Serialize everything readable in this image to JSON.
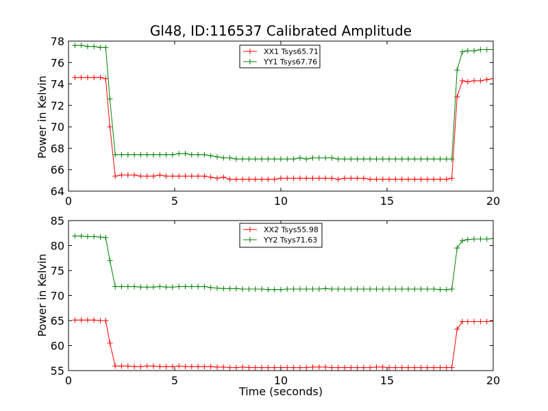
{
  "chart_data": [
    {
      "type": "line",
      "title": "Gl48, ID:116537 Calibrated Amplitude",
      "xlabel": "",
      "ylabel": "Power in Kelvin",
      "xlim": [
        0,
        20
      ],
      "ylim": [
        64,
        78
      ],
      "xticks": [
        0,
        5,
        10,
        15,
        20
      ],
      "yticks": [
        64,
        66,
        68,
        70,
        72,
        74,
        76,
        78
      ],
      "grid": false,
      "legend_position": "top-center",
      "series": [
        {
          "name": "XX1 Tsys65.71",
          "color": "#ff0000",
          "marker": "plus",
          "x": [
            0.3,
            0.6,
            0.9,
            1.2,
            1.5,
            1.75,
            1.95,
            2.2,
            2.5,
            2.8,
            3.1,
            3.4,
            3.7,
            4.0,
            4.3,
            4.6,
            4.9,
            5.2,
            5.5,
            5.8,
            6.1,
            6.4,
            6.7,
            7.0,
            7.3,
            7.6,
            7.9,
            8.2,
            8.5,
            8.8,
            9.1,
            9.4,
            9.7,
            10.0,
            10.3,
            10.6,
            10.9,
            11.2,
            11.5,
            11.8,
            12.1,
            12.4,
            12.7,
            13.0,
            13.3,
            13.6,
            13.9,
            14.2,
            14.5,
            14.8,
            15.1,
            15.4,
            15.7,
            16.0,
            16.3,
            16.6,
            16.9,
            17.2,
            17.5,
            17.8,
            18.05,
            18.3,
            18.55,
            18.8,
            19.1,
            19.4,
            19.7,
            20.0
          ],
          "y": [
            74.6,
            74.6,
            74.6,
            74.6,
            74.6,
            74.5,
            70.0,
            65.4,
            65.5,
            65.5,
            65.5,
            65.4,
            65.4,
            65.4,
            65.5,
            65.4,
            65.4,
            65.4,
            65.4,
            65.4,
            65.4,
            65.4,
            65.3,
            65.2,
            65.3,
            65.1,
            65.1,
            65.1,
            65.1,
            65.1,
            65.1,
            65.1,
            65.1,
            65.2,
            65.2,
            65.2,
            65.2,
            65.2,
            65.2,
            65.2,
            65.2,
            65.2,
            65.1,
            65.2,
            65.2,
            65.2,
            65.2,
            65.1,
            65.1,
            65.1,
            65.1,
            65.1,
            65.1,
            65.1,
            65.1,
            65.1,
            65.1,
            65.1,
            65.1,
            65.1,
            65.2,
            72.8,
            74.3,
            74.2,
            74.3,
            74.3,
            74.4,
            74.5
          ]
        },
        {
          "name": "YY1 Tsys67.76",
          "color": "#008000",
          "marker": "plus",
          "x": [
            0.3,
            0.6,
            0.9,
            1.2,
            1.5,
            1.75,
            1.95,
            2.2,
            2.5,
            2.8,
            3.1,
            3.4,
            3.7,
            4.0,
            4.3,
            4.6,
            4.9,
            5.2,
            5.5,
            5.8,
            6.1,
            6.4,
            6.7,
            7.0,
            7.3,
            7.6,
            7.9,
            8.2,
            8.5,
            8.8,
            9.1,
            9.4,
            9.7,
            10.0,
            10.3,
            10.6,
            10.9,
            11.2,
            11.5,
            11.8,
            12.1,
            12.4,
            12.7,
            13.0,
            13.3,
            13.6,
            13.9,
            14.2,
            14.5,
            14.8,
            15.1,
            15.4,
            15.7,
            16.0,
            16.3,
            16.6,
            16.9,
            17.2,
            17.5,
            17.8,
            18.05,
            18.3,
            18.55,
            18.8,
            19.1,
            19.4,
            19.7,
            20.0
          ],
          "y": [
            77.6,
            77.6,
            77.5,
            77.5,
            77.4,
            77.4,
            72.6,
            67.4,
            67.4,
            67.4,
            67.4,
            67.4,
            67.4,
            67.4,
            67.4,
            67.4,
            67.4,
            67.5,
            67.5,
            67.4,
            67.4,
            67.4,
            67.3,
            67.2,
            67.1,
            67.1,
            67.0,
            67.0,
            67.0,
            67.0,
            67.0,
            67.0,
            67.0,
            67.0,
            67.0,
            67.0,
            67.1,
            67.0,
            67.1,
            67.1,
            67.1,
            67.1,
            67.0,
            67.0,
            67.0,
            67.0,
            67.0,
            67.0,
            67.0,
            67.0,
            67.0,
            67.0,
            67.0,
            67.0,
            67.0,
            67.0,
            67.0,
            67.0,
            67.0,
            67.0,
            67.0,
            75.3,
            77.0,
            77.1,
            77.1,
            77.2,
            77.2,
            77.2
          ]
        }
      ]
    },
    {
      "type": "line",
      "title": "",
      "xlabel": "Time (seconds)",
      "ylabel": "Power in Kelvin",
      "xlim": [
        0,
        20
      ],
      "ylim": [
        55,
        85
      ],
      "xticks": [
        0,
        5,
        10,
        15,
        20
      ],
      "yticks": [
        55,
        60,
        65,
        70,
        75,
        80,
        85
      ],
      "grid": false,
      "legend_position": "top-center",
      "series": [
        {
          "name": "XX2 Tsys55.98",
          "color": "#ff0000",
          "marker": "plus",
          "x": [
            0.3,
            0.6,
            0.9,
            1.2,
            1.5,
            1.75,
            1.95,
            2.2,
            2.5,
            2.8,
            3.1,
            3.4,
            3.7,
            4.0,
            4.3,
            4.6,
            4.9,
            5.2,
            5.5,
            5.8,
            6.1,
            6.4,
            6.7,
            7.0,
            7.3,
            7.6,
            7.9,
            8.2,
            8.5,
            8.8,
            9.1,
            9.4,
            9.7,
            10.0,
            10.3,
            10.6,
            10.9,
            11.2,
            11.5,
            11.8,
            12.1,
            12.4,
            12.7,
            13.0,
            13.3,
            13.6,
            13.9,
            14.2,
            14.5,
            14.8,
            15.1,
            15.4,
            15.7,
            16.0,
            16.3,
            16.6,
            16.9,
            17.2,
            17.5,
            17.8,
            18.05,
            18.3,
            18.55,
            18.8,
            19.1,
            19.4,
            19.7,
            20.0
          ],
          "y": [
            65.1,
            65.1,
            65.1,
            65.1,
            65.0,
            65.0,
            60.5,
            55.9,
            55.9,
            55.9,
            55.8,
            55.8,
            55.9,
            55.9,
            55.8,
            55.8,
            55.8,
            55.9,
            55.8,
            55.8,
            55.8,
            55.8,
            55.8,
            55.7,
            55.7,
            55.6,
            55.6,
            55.7,
            55.6,
            55.6,
            55.6,
            55.6,
            55.6,
            55.6,
            55.6,
            55.6,
            55.6,
            55.6,
            55.7,
            55.7,
            55.7,
            55.6,
            55.6,
            55.6,
            55.6,
            55.6,
            55.6,
            55.6,
            55.7,
            55.7,
            55.6,
            55.6,
            55.6,
            55.6,
            55.6,
            55.6,
            55.6,
            55.6,
            55.6,
            55.6,
            55.6,
            63.3,
            64.8,
            64.8,
            64.8,
            64.8,
            64.8,
            64.9
          ]
        },
        {
          "name": "YY2 Tsys71.63",
          "color": "#008000",
          "marker": "plus",
          "x": [
            0.3,
            0.6,
            0.9,
            1.2,
            1.5,
            1.75,
            1.95,
            2.2,
            2.5,
            2.8,
            3.1,
            3.4,
            3.7,
            4.0,
            4.3,
            4.6,
            4.9,
            5.2,
            5.5,
            5.8,
            6.1,
            6.4,
            6.7,
            7.0,
            7.3,
            7.6,
            7.9,
            8.2,
            8.5,
            8.8,
            9.1,
            9.4,
            9.7,
            10.0,
            10.3,
            10.6,
            10.9,
            11.2,
            11.5,
            11.8,
            12.1,
            12.4,
            12.7,
            13.0,
            13.3,
            13.6,
            13.9,
            14.2,
            14.5,
            14.8,
            15.1,
            15.4,
            15.7,
            16.0,
            16.3,
            16.6,
            16.9,
            17.2,
            17.5,
            17.8,
            18.05,
            18.3,
            18.55,
            18.8,
            19.1,
            19.4,
            19.7,
            20.0
          ],
          "y": [
            81.9,
            81.9,
            81.8,
            81.8,
            81.7,
            81.6,
            77.0,
            71.8,
            71.8,
            71.8,
            71.8,
            71.7,
            71.7,
            71.7,
            71.8,
            71.7,
            71.7,
            71.8,
            71.8,
            71.8,
            71.8,
            71.8,
            71.6,
            71.5,
            71.4,
            71.4,
            71.4,
            71.3,
            71.3,
            71.3,
            71.3,
            71.2,
            71.2,
            71.2,
            71.3,
            71.3,
            71.3,
            71.3,
            71.3,
            71.3,
            71.4,
            71.3,
            71.3,
            71.3,
            71.3,
            71.3,
            71.3,
            71.3,
            71.3,
            71.3,
            71.3,
            71.3,
            71.3,
            71.3,
            71.3,
            71.3,
            71.3,
            71.3,
            71.2,
            71.2,
            71.3,
            79.5,
            81.0,
            81.2,
            81.3,
            81.3,
            81.3,
            81.4
          ]
        }
      ]
    }
  ]
}
